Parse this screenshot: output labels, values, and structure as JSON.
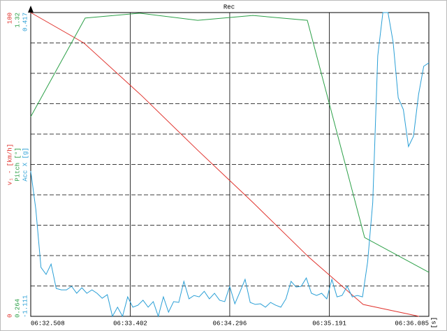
{
  "chart_data": {
    "type": "line",
    "title": "Rec",
    "x_label": "[s]",
    "xlim": [
      392.508,
      396.085
    ],
    "xticks": [
      {
        "value": 392.508,
        "label": "06:32.508"
      },
      {
        "value": 393.402,
        "label": "06:33.402"
      },
      {
        "value": 394.296,
        "label": "06:34.296"
      },
      {
        "value": 395.191,
        "label": "06:35.191"
      },
      {
        "value": 396.085,
        "label": "06:36.085"
      }
    ],
    "series": [
      {
        "name": "v₁ - [km/h]",
        "color": "#e0322c",
        "ylim": [
          0,
          100
        ],
        "x": [
          392.508,
          392.985,
          393.506,
          394.008,
          394.504,
          395.006,
          395.495,
          395.997
        ],
        "values": [
          100,
          90,
          72.6,
          54.7,
          37.5,
          19.5,
          3.9,
          0
        ]
      },
      {
        "name": "Pitch [°]",
        "color": "#2ca048",
        "ylim": [
          0.264,
          1.32
        ],
        "x": [
          392.508,
          392.997,
          393.487,
          394.008,
          394.504,
          394.993,
          395.508,
          396.085
        ],
        "values": [
          0.958,
          1.301,
          1.318,
          1.293,
          1.31,
          1.293,
          0.538,
          0.417
        ]
      },
      {
        "name": "Acc X [g]",
        "color": "#2a9fd6",
        "ylim": [
          -1.111,
          0.417
        ],
        "x": [
          392.508,
          392.554,
          392.6,
          392.646,
          392.691,
          392.737,
          392.783,
          392.829,
          392.875,
          392.921,
          392.967,
          393.012,
          393.058,
          393.104,
          393.15,
          393.196,
          393.242,
          393.288,
          393.333,
          393.379,
          393.425,
          393.471,
          393.517,
          393.563,
          393.609,
          393.654,
          393.7,
          393.746,
          393.792,
          393.838,
          393.884,
          393.93,
          393.975,
          394.021,
          394.067,
          394.113,
          394.159,
          394.205,
          394.251,
          394.296,
          394.342,
          394.388,
          394.434,
          394.48,
          394.526,
          394.572,
          394.617,
          394.663,
          394.709,
          394.755,
          394.801,
          394.847,
          394.893,
          394.938,
          394.984,
          395.03,
          395.076,
          395.122,
          395.168,
          395.214,
          395.26,
          395.305,
          395.351,
          395.397,
          395.443,
          395.489,
          395.535,
          395.581,
          395.626,
          395.672,
          395.718,
          395.764,
          395.81,
          395.856,
          395.902,
          395.947,
          395.993,
          396.039,
          396.085
        ],
        "values": [
          -0.38,
          -0.574,
          -0.865,
          -0.9,
          -0.848,
          -0.971,
          -0.978,
          -0.978,
          -0.96,
          -0.995,
          -0.967,
          -0.995,
          -0.978,
          -0.995,
          -1.02,
          -1.002,
          -1.111,
          -1.065,
          -1.111,
          -1.013,
          -1.065,
          -1.055,
          -1.03,
          -1.065,
          -1.037,
          -1.111,
          -1.013,
          -1.09,
          -1.037,
          -1.041,
          -0.935,
          -1.023,
          -1.006,
          -1.013,
          -0.985,
          -1.023,
          -0.995,
          -1.03,
          -1.037,
          -0.96,
          -1.048,
          -0.988,
          -0.925,
          -1.041,
          -1.051,
          -1.048,
          -1.065,
          -1.041,
          -1.055,
          -1.065,
          -1.023,
          -0.935,
          -0.964,
          -0.96,
          -0.918,
          -0.995,
          -1.006,
          -0.995,
          -1.023,
          -0.925,
          -1.013,
          -1.006,
          -0.96,
          -1.013,
          -1.006,
          -1.013,
          -0.837,
          -0.538,
          0.199,
          0.417,
          0.417,
          0.269,
          -0.012,
          -0.071,
          -0.257,
          -0.205,
          0.006,
          0.147,
          0.164
        ]
      }
    ]
  }
}
